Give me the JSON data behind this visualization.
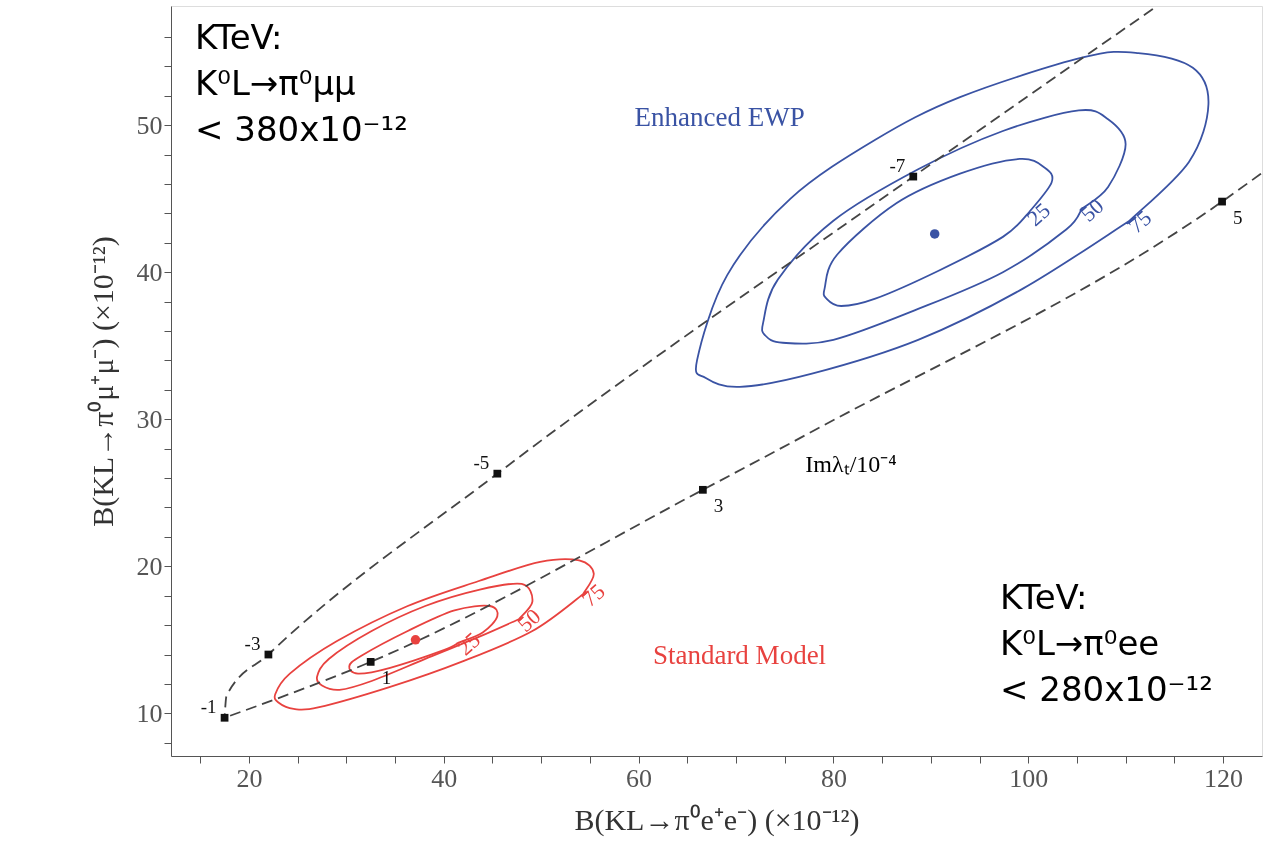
{
  "chart_data": {
    "type": "line",
    "xlabel": "B(KL→π⁰e⁺e⁻)  (×10⁻¹²)",
    "ylabel": "B(KL→π⁰μ⁺μ⁻)  (×10⁻¹²)",
    "xlim": [
      12,
      124
    ],
    "ylim": [
      7.1,
      58.1
    ],
    "xticks": [
      {
        "value": 15,
        "label": null
      },
      20,
      {
        "value": 25,
        "label": null
      },
      {
        "value": 30,
        "label": null
      },
      {
        "value": 35,
        "label": null
      },
      40,
      {
        "value": 45,
        "label": null
      },
      {
        "value": 50,
        "label": null
      },
      {
        "value": 55,
        "label": null
      },
      60,
      {
        "value": 65,
        "label": null
      },
      {
        "value": 70,
        "label": null
      },
      {
        "value": 75,
        "label": null
      },
      80,
      {
        "value": 85,
        "label": null
      },
      {
        "value": 90,
        "label": null
      },
      {
        "value": 95,
        "label": null
      },
      100,
      {
        "value": 105,
        "label": null
      },
      {
        "value": 110,
        "label": null
      },
      {
        "value": 115,
        "label": null
      },
      120
    ],
    "yticks": [
      {
        "value": 8,
        "label": null
      },
      10,
      {
        "value": 12,
        "label": null
      },
      {
        "value": 14,
        "label": null
      },
      {
        "value": 16,
        "label": null
      },
      {
        "value": 18,
        "label": null
      },
      20,
      {
        "value": 22,
        "label": null
      },
      {
        "value": 24,
        "label": null
      },
      {
        "value": 26,
        "label": null
      },
      {
        "value": 28,
        "label": null
      },
      30,
      {
        "value": 32,
        "label": null
      },
      {
        "value": 34,
        "label": null
      },
      {
        "value": 36,
        "label": null
      },
      {
        "value": 38,
        "label": null
      },
      40,
      {
        "value": 42,
        "label": null
      },
      {
        "value": 44,
        "label": null
      },
      {
        "value": 46,
        "label": null
      },
      {
        "value": 48,
        "label": null
      },
      50,
      {
        "value": 52,
        "label": null
      },
      {
        "value": 54,
        "label": null
      },
      {
        "value": 56,
        "label": null
      }
    ],
    "grid": false,
    "series": [
      {
        "color": "#444444",
        "line_style": "dashed",
        "marker": "none",
        "x": [
          17.5,
          17.7,
          22.0,
          45.5,
          88.2,
          112.8
        ],
        "values": [
          9.7,
          11.2,
          14.0,
          26.3,
          46.5,
          57.9
        ]
      },
      {
        "color": "#444444",
        "line_style": "dashed",
        "marker": "none",
        "x": [
          17.5,
          32.5,
          66.6,
          78.2,
          119.9,
          123.9
        ],
        "values": [
          9.7,
          13.5,
          25.2,
          29.3,
          44.8,
          46.7
        ]
      },
      {
        "type": "scatter",
        "color": "#111111",
        "marker": "square",
        "x": [
          17.5,
          22.0,
          45.5,
          88.2
        ],
        "values": [
          9.7,
          14.0,
          26.3,
          46.5
        ]
      },
      {
        "type": "scatter",
        "color": "#111111",
        "marker": "square",
        "x": [
          32.5,
          66.6,
          119.9
        ],
        "values": [
          13.5,
          25.2,
          44.8
        ]
      },
      {
        "type": "scatter",
        "name": "Enhanced EWP",
        "color": "#3a53a4",
        "marker": "circle",
        "x": [
          90.4
        ],
        "values": [
          42.6
        ]
      },
      {
        "type": "scatter",
        "name": "Standard Model",
        "color": "#e8423f",
        "marker": "circle",
        "x": [
          37.1
        ],
        "values": [
          15.0
        ]
      }
    ],
    "annotations": [
      {
        "text": "-1",
        "x": 17.5,
        "y": 9.7
      },
      {
        "text": "-3",
        "x": 22.0,
        "y": 14.0
      },
      {
        "text": "-5",
        "x": 45.5,
        "y": 26.3
      },
      {
        "text": "-7",
        "x": 88.2,
        "y": 46.5
      },
      {
        "text": "1",
        "x": 32.5,
        "y": 13.5
      },
      {
        "text": "3",
        "x": 66.6,
        "y": 25.2
      },
      {
        "text": "5",
        "x": 119.9,
        "y": 44.8
      },
      "25",
      "50",
      "75",
      "25",
      "50",
      "75",
      "Imλₜ/10⁻⁴",
      "KTeV:\nK⁰L→π⁰μμ\n< 380x10⁻¹²",
      "KTeV:\nK⁰L→π⁰ee\n< 280x10⁻¹²"
    ]
  }
}
